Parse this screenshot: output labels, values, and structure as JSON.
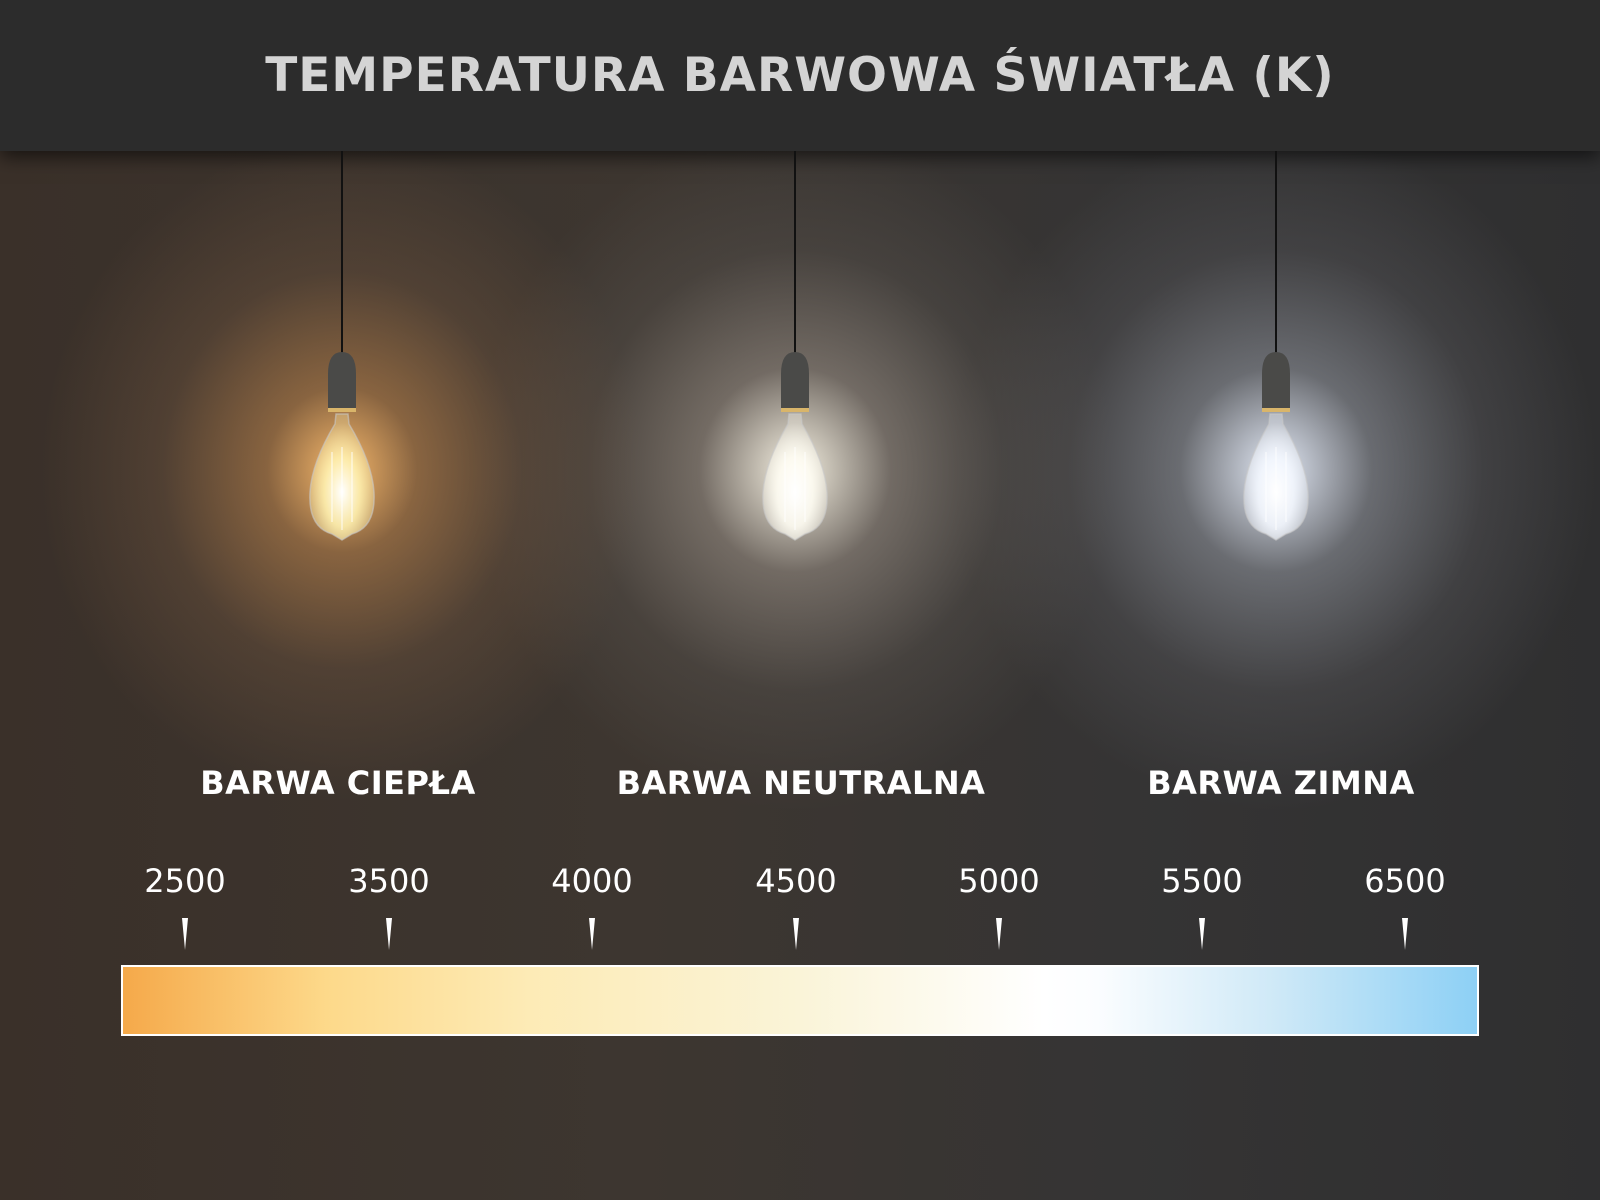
{
  "title": "TEMPERATURA BARWOWA ŚWIATŁA (K)",
  "categories": [
    {
      "label": "BARWA CIEPŁA",
      "glow_color": "#ffbe6e"
    },
    {
      "label": "BARWA NEUTRALNA",
      "glow_color": "#fffaeb"
    },
    {
      "label": "BARWA ZIMNA",
      "glow_color": "#ebf2ff"
    }
  ],
  "scale": {
    "ticks": [
      "2500",
      "3500",
      "4000",
      "4500",
      "5000",
      "5500",
      "6500"
    ],
    "gradient_colors": [
      "#f5a94a",
      "#fdd98a",
      "#faf4d8",
      "#ffffff",
      "#8dd0f5"
    ]
  }
}
